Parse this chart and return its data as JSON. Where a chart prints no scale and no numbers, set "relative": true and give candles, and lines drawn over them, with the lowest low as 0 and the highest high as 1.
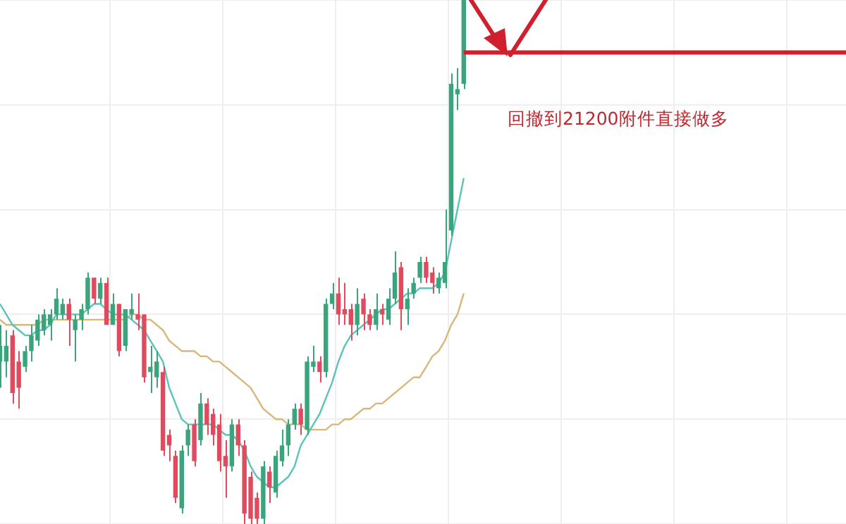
{
  "chart_data": {
    "type": "candlestick",
    "relative": true,
    "grid": true,
    "tick_labels": false,
    "legend": false,
    "annotations": [
      "回撤到21200附件直接做多"
    ],
    "ref_lines": [
      {
        "axis": "y",
        "value": 0.9,
        "color": "#d0202e"
      }
    ],
    "categories": [
      null,
      null,
      null,
      null,
      null,
      null,
      null,
      null,
      null,
      null,
      null,
      null,
      null,
      null,
      null,
      null,
      null,
      null,
      null,
      null,
      null,
      null,
      null,
      null,
      null,
      null,
      null,
      null,
      null,
      null,
      null,
      null,
      null,
      null,
      null,
      null,
      null,
      null,
      null,
      null,
      null,
      null,
      null,
      null,
      null,
      null,
      null,
      null,
      null,
      null,
      null,
      null,
      null,
      null,
      null,
      null,
      null,
      null,
      null,
      null,
      null,
      null,
      null,
      null,
      null,
      null,
      null,
      null,
      null,
      null,
      null,
      null,
      null,
      null,
      null,
      null,
      null,
      null,
      null,
      null,
      null,
      null,
      null,
      null,
      null,
      null,
      null,
      null,
      null,
      null,
      null,
      null,
      null,
      null,
      null,
      null,
      null,
      null,
      null,
      null,
      null,
      null,
      null,
      null,
      null,
      null,
      null,
      null,
      null,
      null,
      null,
      null,
      null,
      null,
      null,
      null,
      null,
      null,
      null,
      null,
      null,
      null,
      null,
      null,
      null,
      null,
      null,
      null,
      null,
      null,
      null,
      null,
      null,
      null,
      null,
      null
    ],
    "ohlc": [
      [
        0.31,
        0.38,
        0.26,
        0.34
      ],
      [
        0.31,
        0.37,
        0.28,
        0.34
      ],
      [
        0.36,
        0.37,
        0.23,
        0.25
      ],
      [
        0.31,
        0.33,
        0.22,
        0.26
      ],
      [
        0.3,
        0.34,
        0.29,
        0.33
      ],
      [
        0.33,
        0.38,
        0.31,
        0.36
      ],
      [
        0.35,
        0.4,
        0.34,
        0.39
      ],
      [
        0.37,
        0.41,
        0.36,
        0.4
      ],
      [
        0.38,
        0.41,
        0.35,
        0.4
      ],
      [
        0.4,
        0.45,
        0.39,
        0.43
      ],
      [
        0.4,
        0.43,
        0.39,
        0.42
      ],
      [
        0.42,
        0.43,
        0.34,
        0.39
      ],
      [
        0.37,
        0.4,
        0.31,
        0.39
      ],
      [
        0.39,
        0.42,
        0.37,
        0.41
      ],
      [
        0.41,
        0.48,
        0.4,
        0.47
      ],
      [
        0.47,
        0.47,
        0.42,
        0.43
      ],
      [
        0.43,
        0.47,
        0.42,
        0.46
      ],
      [
        0.46,
        0.47,
        0.38,
        0.38
      ],
      [
        0.38,
        0.44,
        0.38,
        0.42
      ],
      [
        0.42,
        0.42,
        0.32,
        0.33
      ],
      [
        0.34,
        0.41,
        0.33,
        0.41
      ],
      [
        0.4,
        0.44,
        0.39,
        0.41
      ],
      [
        0.4,
        0.44,
        0.37,
        0.39
      ],
      [
        0.4,
        0.4,
        0.27,
        0.28
      ],
      [
        0.29,
        0.34,
        0.25,
        0.3
      ],
      [
        0.28,
        0.33,
        0.26,
        0.31
      ],
      [
        0.29,
        0.3,
        0.13,
        0.14
      ],
      [
        0.17,
        0.18,
        0.12,
        0.15
      ],
      [
        0.13,
        0.14,
        0.04,
        0.05
      ],
      [
        0.03,
        0.15,
        0.02,
        0.14
      ],
      [
        0.15,
        0.19,
        0.13,
        0.18
      ],
      [
        0.19,
        0.2,
        0.11,
        0.12
      ],
      [
        0.16,
        0.25,
        0.15,
        0.23
      ],
      [
        0.23,
        0.24,
        0.17,
        0.19
      ],
      [
        0.21,
        0.22,
        0.15,
        0.17
      ],
      [
        0.19,
        0.21,
        0.1,
        0.12
      ],
      [
        0.13,
        0.16,
        0.05,
        0.11
      ],
      [
        0.11,
        0.2,
        0.1,
        0.19
      ],
      [
        0.19,
        0.2,
        0.13,
        0.15
      ],
      [
        0.15,
        0.16,
        0,
        0.02
      ],
      [
        0.09,
        0.1,
        0,
        0.01
      ],
      [
        0.05,
        0.06,
        0,
        0.01
      ],
      [
        0.01,
        0.12,
        0,
        0.11
      ],
      [
        0.1,
        0.11,
        0.04,
        0.07
      ],
      [
        0.06,
        0.14,
        0.05,
        0.13
      ],
      [
        0.12,
        0.18,
        0.11,
        0.15
      ],
      [
        0.15,
        0.2,
        0.13,
        0.19
      ],
      [
        0.19,
        0.23,
        0.18,
        0.22
      ],
      [
        0.22,
        0.23,
        0.17,
        0.19
      ],
      [
        0.18,
        0.32,
        0.17,
        0.31
      ],
      [
        0.3,
        0.34,
        0.29,
        0.31
      ],
      [
        0.31,
        0.32,
        0.27,
        0.29
      ],
      [
        0.29,
        0.43,
        0.28,
        0.42
      ],
      [
        0.42,
        0.46,
        0.41,
        0.44
      ],
      [
        0.44,
        0.47,
        0.38,
        0.4
      ],
      [
        0.41,
        0.46,
        0.38,
        0.4
      ],
      [
        0.41,
        0.42,
        0.35,
        0.38
      ],
      [
        0.38,
        0.45,
        0.36,
        0.42
      ],
      [
        0.43,
        0.44,
        0.37,
        0.4
      ],
      [
        0.4,
        0.41,
        0.37,
        0.38
      ],
      [
        0.38,
        0.44,
        0.37,
        0.41
      ],
      [
        0.41,
        0.42,
        0.38,
        0.4
      ],
      [
        0.39,
        0.45,
        0.38,
        0.43
      ],
      [
        0.43,
        0.52,
        0.42,
        0.48
      ],
      [
        0.49,
        0.5,
        0.37,
        0.41
      ],
      [
        0.41,
        0.45,
        0.38,
        0.43
      ],
      [
        0.44,
        0.47,
        0.43,
        0.46
      ],
      [
        0.47,
        0.51,
        0.46,
        0.5
      ],
      [
        0.5,
        0.51,
        0.46,
        0.47
      ],
      [
        0.48,
        0.49,
        0.44,
        0.46
      ],
      [
        0.45,
        0.48,
        0.44,
        0.47
      ],
      [
        0.46,
        0.6,
        0.45,
        0.5
      ],
      [
        0.56,
        0.86,
        0.55,
        0.84
      ],
      [
        0.82,
        0.87,
        0.79,
        0.83
      ],
      [
        0.84,
        1,
        0.83,
        1
      ],
      null,
      null,
      null,
      null,
      null,
      null,
      null,
      null,
      null,
      null,
      null,
      null,
      null,
      null,
      null,
      null,
      null,
      null,
      null,
      null,
      null,
      null,
      null,
      null,
      null,
      null,
      null,
      null,
      null,
      null,
      null,
      null,
      null,
      null,
      null,
      null,
      null,
      null,
      null,
      null,
      null,
      null,
      null,
      null,
      null,
      null,
      null,
      null,
      null,
      null,
      null,
      null,
      null,
      null,
      null,
      null,
      null,
      null,
      null,
      null,
      null
    ],
    "colors": [
      "#3aa57c",
      "#3aa57c",
      "#e04a5f",
      "#e04a5f",
      "#3aa57c",
      "#3aa57c",
      "#3aa57c",
      "#3aa57c",
      "#3aa57c",
      "#3aa57c",
      "#3aa57c",
      "#e04a5f",
      "#3aa57c",
      "#3aa57c",
      "#3aa57c",
      "#e04a5f",
      "#3aa57c",
      "#e04a5f",
      "#3aa57c",
      "#e04a5f",
      "#3aa57c",
      "#3aa57c",
      "#e04a5f",
      "#e04a5f",
      "#3aa57c",
      "#3aa57c",
      "#e04a5f",
      "#e04a5f",
      "#e04a5f",
      "#3aa57c",
      "#3aa57c",
      "#e04a5f",
      "#3aa57c",
      "#e04a5f",
      "#e04a5f",
      "#e04a5f",
      "#e04a5f",
      "#3aa57c",
      "#e04a5f",
      "#e04a5f",
      "#e04a5f",
      "#e04a5f",
      "#3aa57c",
      "#e04a5f",
      "#3aa57c",
      "#3aa57c",
      "#3aa57c",
      "#3aa57c",
      "#e04a5f",
      "#3aa57c",
      "#3aa57c",
      "#e04a5f",
      "#3aa57c",
      "#3aa57c",
      "#e04a5f",
      "#e04a5f",
      "#e04a5f",
      "#3aa57c",
      "#e04a5f",
      "#e04a5f",
      "#3aa57c",
      "#e04a5f",
      "#3aa57c",
      "#3aa57c",
      "#e04a5f",
      "#3aa57c",
      "#3aa57c",
      "#3aa57c",
      "#e04a5f",
      "#e04a5f",
      "#3aa57c",
      "#3aa57c",
      "#3aa57c",
      "#3aa57c",
      "#3aa57c",
      null,
      null,
      null,
      null,
      null,
      null,
      null,
      null,
      null,
      null,
      null,
      null,
      null,
      null,
      null,
      null,
      null,
      null,
      null,
      null,
      null,
      null,
      null,
      null,
      null,
      null,
      null,
      null,
      null,
      null,
      null,
      null,
      null,
      null,
      null,
      null,
      null,
      null,
      null,
      null,
      null,
      null,
      null,
      null,
      null,
      null,
      null,
      null,
      null,
      null,
      null,
      null,
      null,
      null,
      null,
      null,
      null,
      null,
      null,
      null,
      null
    ],
    "series": [
      {
        "type": "line",
        "color": "#5cc3bb",
        "values": [
          0.42,
          0.4,
          0.38,
          0.37,
          0.36,
          0.36,
          0.37,
          0.37,
          0.38,
          0.4,
          0.4,
          0.4,
          0.4,
          0.4,
          0.41,
          0.42,
          0.42,
          0.41,
          0.4,
          0.4,
          0.4,
          0.39,
          0.38,
          0.37,
          0.35,
          0.33,
          0.31,
          0.26,
          0.23,
          0.2,
          0.19,
          0.19,
          0.19,
          0.19,
          0.19,
          0.18,
          0.17,
          0.17,
          0.16,
          0.14,
          0.11,
          0.09,
          0.08,
          0.07,
          0.07,
          0.08,
          0.09,
          0.11,
          0.15,
          0.17,
          0.19,
          0.21,
          0.24,
          0.27,
          0.31,
          0.34,
          0.36,
          0.37,
          0.38,
          0.39,
          0.4,
          0.41,
          0.41,
          0.42,
          0.43,
          0.44,
          0.44,
          0.45,
          0.45,
          0.45,
          0.46,
          0.48,
          0.54,
          0.6,
          0.66,
          null,
          null,
          null,
          null,
          null,
          null,
          null,
          null,
          null,
          null,
          null,
          null,
          null,
          null,
          null,
          null,
          null,
          null,
          null,
          null,
          null,
          null,
          null,
          null,
          null,
          null,
          null,
          null,
          null,
          null,
          null,
          null,
          null,
          null,
          null,
          null,
          null,
          null,
          null,
          null,
          null,
          null,
          null,
          null,
          null,
          null,
          null,
          null,
          null,
          null,
          null,
          null,
          null,
          null,
          null,
          null,
          null,
          null,
          null,
          null,
          null
        ]
      },
      {
        "type": "line",
        "color": "#d9b77c",
        "values": [
          0.39,
          0.38,
          0.38,
          0.38,
          0.38,
          0.38,
          0.38,
          0.39,
          0.39,
          0.39,
          0.39,
          0.39,
          0.39,
          0.39,
          0.39,
          0.39,
          0.39,
          0.39,
          0.39,
          0.39,
          0.39,
          0.4,
          0.4,
          0.39,
          0.39,
          0.38,
          0.37,
          0.35,
          0.34,
          0.33,
          0.33,
          0.33,
          0.32,
          0.32,
          0.31,
          0.31,
          0.3,
          0.29,
          0.28,
          0.27,
          0.26,
          0.24,
          0.22,
          0.21,
          0.2,
          0.2,
          0.19,
          0.19,
          0.19,
          0.18,
          0.18,
          0.18,
          0.18,
          0.19,
          0.19,
          0.2,
          0.2,
          0.21,
          0.22,
          0.22,
          0.23,
          0.23,
          0.24,
          0.25,
          0.26,
          0.27,
          0.28,
          0.28,
          0.3,
          0.32,
          0.33,
          0.35,
          0.38,
          0.4,
          0.44,
          null,
          null,
          null,
          null,
          null,
          null,
          null,
          null,
          null,
          null,
          null,
          null,
          null,
          null,
          null,
          null,
          null,
          null,
          null,
          null,
          null,
          null,
          null,
          null,
          null,
          null,
          null,
          null,
          null,
          null,
          null,
          null,
          null,
          null,
          null,
          null,
          null,
          null,
          null,
          null,
          null,
          null,
          null,
          null,
          null,
          null,
          null,
          null,
          null,
          null,
          null,
          null,
          null,
          null,
          null,
          null,
          null,
          null,
          null,
          null,
          null
        ]
      }
    ]
  }
}
